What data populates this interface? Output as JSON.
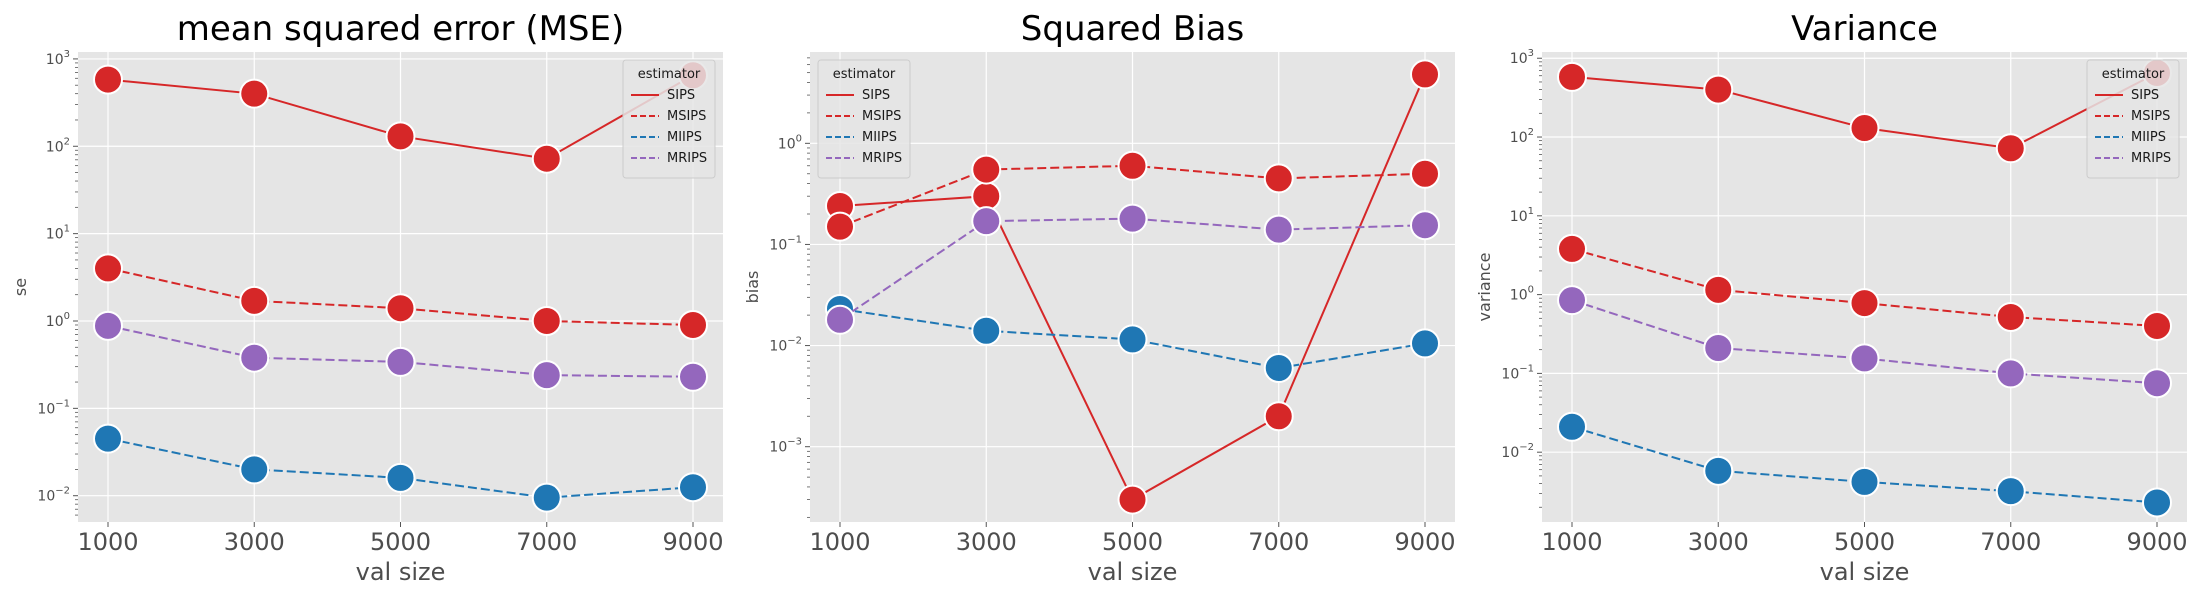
{
  "chart_data": [
    {
      "type": "line",
      "title": "mean squared error (MSE)",
      "xlabel": "val size",
      "ylabel": "se",
      "yscale": "log",
      "ylim": [
        0.005,
        1200
      ],
      "x": [
        1000,
        3000,
        5000,
        7000,
        9000
      ],
      "xticks": [
        "1000",
        "3000",
        "5000",
        "7000",
        "9000"
      ],
      "yticks": [
        0.01,
        0.1,
        1,
        10,
        100,
        1000
      ],
      "ytick_labels": [
        {
          "base": "10",
          "exp": "−2"
        },
        {
          "base": "10",
          "exp": "−1"
        },
        {
          "base": "10",
          "exp": "0"
        },
        {
          "base": "10",
          "exp": "1"
        },
        {
          "base": "10",
          "exp": "2"
        },
        {
          "base": "10",
          "exp": "3"
        }
      ],
      "grid": true,
      "legend": {
        "title": "estimator",
        "position": "top-right"
      },
      "series": [
        {
          "name": "SIPS",
          "color": "#d62728",
          "dash": "solid",
          "values": [
            580,
            400,
            130,
            72,
            650
          ]
        },
        {
          "name": "MSIPS",
          "color": "#d62728",
          "dash": "dashed",
          "values": [
            4.0,
            1.7,
            1.4,
            1.0,
            0.9
          ]
        },
        {
          "name": "MIIPS",
          "color": "#1f77b4",
          "dash": "dashed",
          "values": [
            0.045,
            0.02,
            0.016,
            0.0095,
            0.0125
          ]
        },
        {
          "name": "MRIPS",
          "color": "#9467bd",
          "dash": "dashed",
          "values": [
            0.88,
            0.38,
            0.34,
            0.24,
            0.23
          ]
        }
      ]
    },
    {
      "type": "line",
      "title": "Squared Bias",
      "xlabel": "val size",
      "ylabel": "bias",
      "yscale": "log",
      "ylim": [
        0.00018,
        8
      ],
      "x": [
        1000,
        3000,
        5000,
        7000,
        9000
      ],
      "xticks": [
        "1000",
        "3000",
        "5000",
        "7000",
        "9000"
      ],
      "yticks": [
        0.001,
        0.01,
        0.1,
        1
      ],
      "ytick_labels": [
        {
          "base": "10",
          "exp": "−3"
        },
        {
          "base": "10",
          "exp": "−2"
        },
        {
          "base": "10",
          "exp": "−1"
        },
        {
          "base": "10",
          "exp": "0"
        }
      ],
      "grid": true,
      "legend": {
        "title": "estimator",
        "position": "top-left"
      },
      "series": [
        {
          "name": "SIPS",
          "color": "#d62728",
          "dash": "solid",
          "values": [
            0.24,
            0.3,
            0.0003,
            0.002,
            4.8
          ]
        },
        {
          "name": "MSIPS",
          "color": "#d62728",
          "dash": "dashed",
          "values": [
            0.15,
            0.55,
            0.6,
            0.45,
            0.5
          ]
        },
        {
          "name": "MIIPS",
          "color": "#1f77b4",
          "dash": "dashed",
          "values": [
            0.023,
            0.014,
            0.0115,
            0.006,
            0.0105
          ]
        },
        {
          "name": "MRIPS",
          "color": "#9467bd",
          "dash": "dashed",
          "values": [
            0.018,
            0.17,
            0.18,
            0.14,
            0.155
          ]
        }
      ]
    },
    {
      "type": "line",
      "title": "Variance",
      "xlabel": "val size",
      "ylabel": "variance",
      "yscale": "log",
      "ylim": [
        0.0013,
        1200
      ],
      "x": [
        1000,
        3000,
        5000,
        7000,
        9000
      ],
      "xticks": [
        "1000",
        "3000",
        "5000",
        "7000",
        "9000"
      ],
      "yticks": [
        0.01,
        0.1,
        1,
        10,
        100,
        1000
      ],
      "ytick_labels": [
        {
          "base": "10",
          "exp": "−2"
        },
        {
          "base": "10",
          "exp": "−1"
        },
        {
          "base": "10",
          "exp": "0"
        },
        {
          "base": "10",
          "exp": "1"
        },
        {
          "base": "10",
          "exp": "2"
        },
        {
          "base": "10",
          "exp": "3"
        }
      ],
      "grid": true,
      "legend": {
        "title": "estimator",
        "position": "top-right"
      },
      "series": [
        {
          "name": "SIPS",
          "color": "#d62728",
          "dash": "solid",
          "values": [
            580,
            400,
            130,
            72,
            650
          ]
        },
        {
          "name": "MSIPS",
          "color": "#d62728",
          "dash": "dashed",
          "values": [
            3.8,
            1.15,
            0.78,
            0.52,
            0.4
          ]
        },
        {
          "name": "MIIPS",
          "color": "#1f77b4",
          "dash": "dashed",
          "values": [
            0.021,
            0.0058,
            0.0042,
            0.0032,
            0.0023
          ]
        },
        {
          "name": "MRIPS",
          "color": "#9467bd",
          "dash": "dashed",
          "values": [
            0.85,
            0.21,
            0.155,
            0.1,
            0.075
          ]
        }
      ]
    }
  ]
}
